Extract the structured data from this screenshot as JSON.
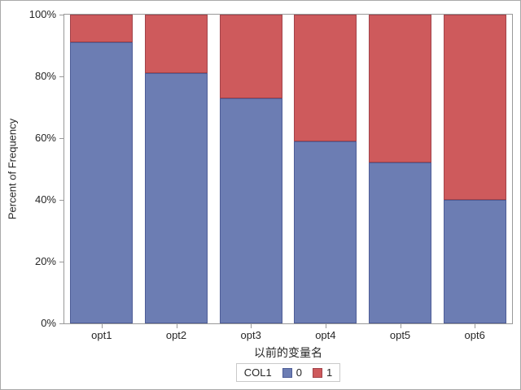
{
  "chart_data": {
    "type": "bar",
    "stacked": true,
    "categories": [
      "opt1",
      "opt2",
      "opt3",
      "opt4",
      "opt5",
      "opt6"
    ],
    "series": [
      {
        "name": "0",
        "color": "#6C7DB3",
        "border_color": "#4E5D97",
        "values": [
          91,
          81,
          73,
          59,
          52,
          40
        ]
      },
      {
        "name": "1",
        "color": "#CE5A5C",
        "border_color": "#A2434A",
        "values": [
          9,
          19,
          27,
          41,
          48,
          60
        ]
      }
    ],
    "xlabel": "以前的变量名",
    "ylabel": "Percent of Frequency",
    "ylim": [
      0,
      100
    ],
    "yticks": [
      0,
      20,
      40,
      60,
      80,
      100
    ],
    "ytick_labels": [
      "0%",
      "20%",
      "40%",
      "60%",
      "80%",
      "100%"
    ],
    "grid": false,
    "legend": {
      "title": "COL1",
      "position": "bottom"
    }
  },
  "frame": {
    "background": "#ffffff",
    "border_color": "#a9a9a9",
    "axis_color": "#999999",
    "text_color": "#262626"
  }
}
